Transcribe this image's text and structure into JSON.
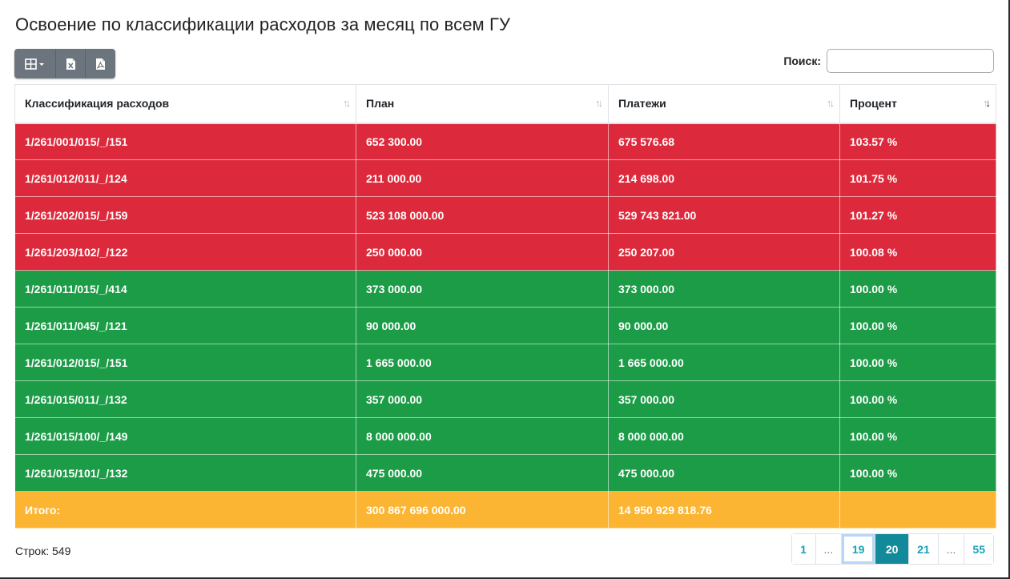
{
  "page": {
    "title": "Освоение по классификации расходов за месяц по всем ГУ"
  },
  "toolbar": {
    "buttons": [
      {
        "icon": "columns-grid-icon"
      },
      {
        "icon": "excel-file-icon"
      },
      {
        "icon": "pdf-file-icon"
      }
    ]
  },
  "search": {
    "label": "Поиск:",
    "value": ""
  },
  "table": {
    "columns": [
      "Классификация расходов",
      "План",
      "Платежи",
      "Процент"
    ],
    "rows": [
      {
        "code": "1/261/001/015/_/151",
        "plan": "652 300.00",
        "payments": "675 576.68",
        "percent": "103.57 %",
        "status": "over"
      },
      {
        "code": "1/261/012/011/_/124",
        "plan": "211 000.00",
        "payments": "214 698.00",
        "percent": "101.75 %",
        "status": "over"
      },
      {
        "code": "1/261/202/015/_/159",
        "plan": "523 108 000.00",
        "payments": "529 743 821.00",
        "percent": "101.27 %",
        "status": "over"
      },
      {
        "code": "1/261/203/102/_/122",
        "plan": "250 000.00",
        "payments": "250 207.00",
        "percent": "100.08 %",
        "status": "over"
      },
      {
        "code": "1/261/011/015/_/414",
        "plan": "373 000.00",
        "payments": "373 000.00",
        "percent": "100.00 %",
        "status": "ok"
      },
      {
        "code": "1/261/011/045/_/121",
        "plan": "90 000.00",
        "payments": "90 000.00",
        "percent": "100.00 %",
        "status": "ok"
      },
      {
        "code": "1/261/012/015/_/151",
        "plan": "1 665 000.00",
        "payments": "1 665 000.00",
        "percent": "100.00 %",
        "status": "ok"
      },
      {
        "code": "1/261/015/011/_/132",
        "plan": "357 000.00",
        "payments": "357 000.00",
        "percent": "100.00 %",
        "status": "ok"
      },
      {
        "code": "1/261/015/100/_/149",
        "plan": "8 000 000.00",
        "payments": "8 000 000.00",
        "percent": "100.00 %",
        "status": "ok"
      },
      {
        "code": "1/261/015/101/_/132",
        "plan": "475 000.00",
        "payments": "475 000.00",
        "percent": "100.00 %",
        "status": "ok"
      }
    ],
    "total": {
      "label": "Итого:",
      "plan": "300 867 696 000.00",
      "payments": "14 950 929 818.76",
      "percent": ""
    }
  },
  "footer": {
    "rows_count": "Строк: 549"
  },
  "pagination": {
    "pages": [
      "1",
      "...",
      "19",
      "20",
      "21",
      "...",
      "55"
    ],
    "active": "20"
  },
  "colors": {
    "over": "#dc2a3c",
    "ok": "#1c9c47",
    "total": "#fcb532",
    "toolbar": "#6c757d",
    "pager_active": "#138a99",
    "pager_link": "#17a2b8"
  }
}
